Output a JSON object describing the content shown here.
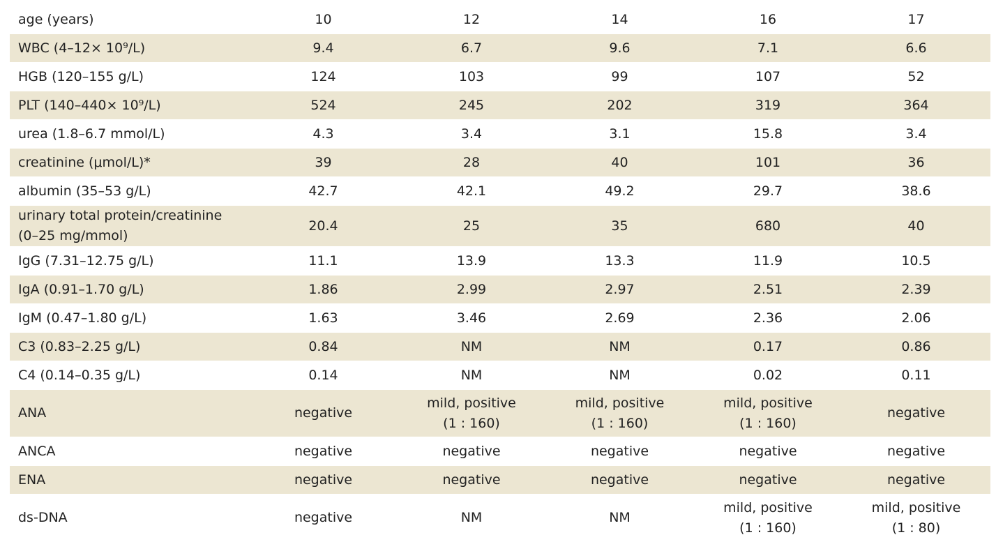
{
  "table": {
    "rows": [
      {
        "label": "age (years)",
        "values": [
          "10",
          "12",
          "14",
          "16",
          "17"
        ]
      },
      {
        "label": "WBC (4–12× 10⁹/L)",
        "values": [
          "9.4",
          "6.7",
          "9.6",
          "7.1",
          "6.6"
        ]
      },
      {
        "label": "HGB (120–155 g/L)",
        "values": [
          "124",
          "103",
          "99",
          "107",
          "52"
        ]
      },
      {
        "label": "PLT (140–440× 10⁹/L)",
        "values": [
          "524",
          "245",
          "202",
          "319",
          "364"
        ]
      },
      {
        "label": "urea (1.8–6.7 mmol/L)",
        "values": [
          "4.3",
          "3.4",
          "3.1",
          "15.8",
          "3.4"
        ]
      },
      {
        "label": "creatinine (μmol/L)*",
        "values": [
          "39",
          "28",
          "40",
          "101",
          "36"
        ]
      },
      {
        "label": "albumin (35–53 g/L)",
        "values": [
          "42.7",
          "42.1",
          "49.2",
          "29.7",
          "38.6"
        ]
      },
      {
        "label_lines": [
          "urinary total protein/creatinine",
          "(0–25 mg/mmol)"
        ],
        "values": [
          "20.4",
          "25",
          "35",
          "680",
          "40"
        ]
      },
      {
        "label": "IgG (7.31–12.75 g/L)",
        "values": [
          "11.1",
          "13.9",
          "13.3",
          "11.9",
          "10.5"
        ]
      },
      {
        "label": "IgA (0.91–1.70 g/L)",
        "values": [
          "1.86",
          "2.99",
          "2.97",
          "2.51",
          "2.39"
        ]
      },
      {
        "label": "IgM (0.47–1.80 g/L)",
        "values": [
          "1.63",
          "3.46",
          "2.69",
          "2.36",
          "2.06"
        ]
      },
      {
        "label": "C3 (0.83–2.25 g/L)",
        "values": [
          "0.84",
          "NM",
          "NM",
          "0.17",
          "0.86"
        ]
      },
      {
        "label": "C4 (0.14–0.35 g/L)",
        "values": [
          "0.14",
          "NM",
          "NM",
          "0.02",
          "0.11"
        ]
      },
      {
        "label": "ANA",
        "values": [
          [
            "negative"
          ],
          [
            "mild, positive",
            "(1 : 160)"
          ],
          [
            "mild, positive",
            "(1 : 160)"
          ],
          [
            "mild, positive",
            "(1 : 160)"
          ],
          [
            "negative"
          ]
        ]
      },
      {
        "label": "ANCA",
        "values": [
          "negative",
          "negative",
          "negative",
          "negative",
          "negative"
        ]
      },
      {
        "label": "ENA",
        "values": [
          "negative",
          "negative",
          "negative",
          "negative",
          "negative"
        ]
      },
      {
        "label": "ds-DNA",
        "values": [
          [
            "negative"
          ],
          [
            "NM"
          ],
          [
            "NM"
          ],
          [
            "mild, positive",
            "(1 : 160)"
          ],
          [
            "mild, positive",
            "(1 : 80)"
          ]
        ]
      }
    ]
  },
  "colors": {
    "shade": "#ece6d2",
    "text": "#222222",
    "background": "#ffffff"
  }
}
